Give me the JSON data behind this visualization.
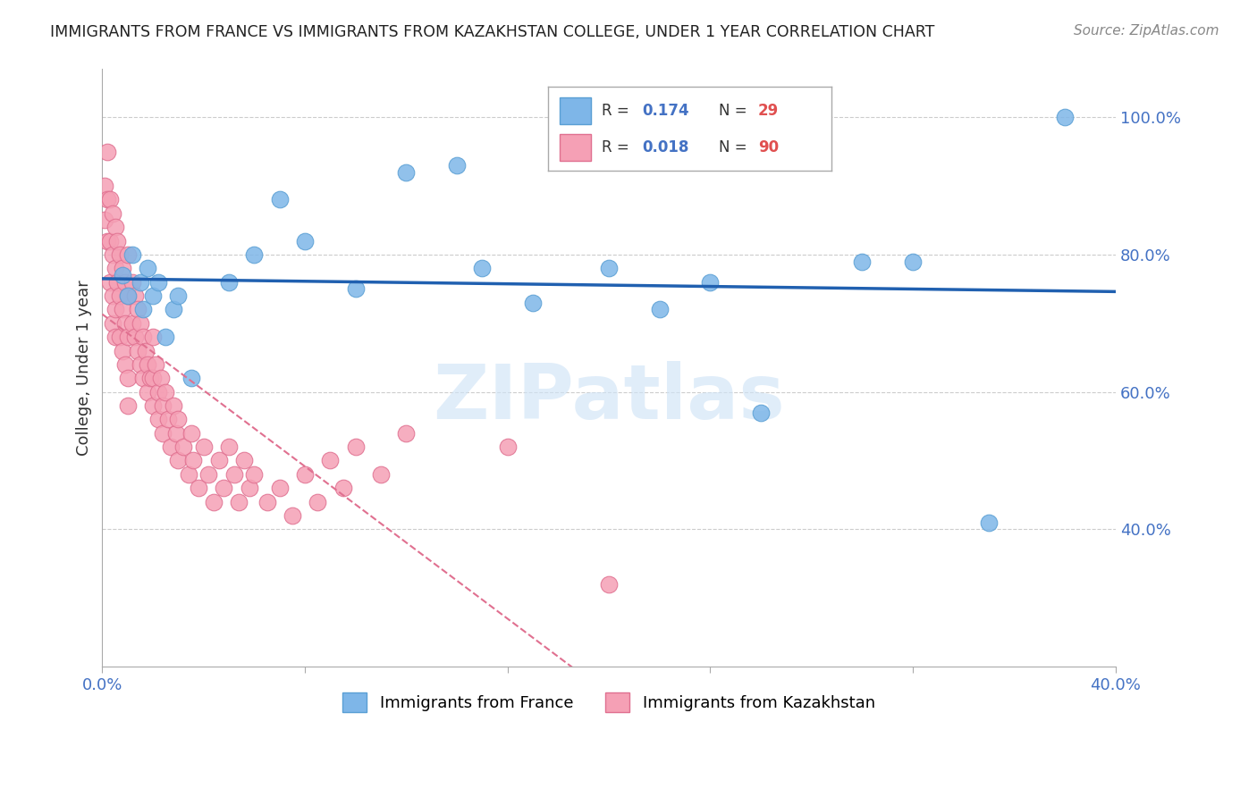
{
  "title": "IMMIGRANTS FROM FRANCE VS IMMIGRANTS FROM KAZAKHSTAN COLLEGE, UNDER 1 YEAR CORRELATION CHART",
  "source": "Source: ZipAtlas.com",
  "ylabel": "College, Under 1 year",
  "ylabel_right_ticks": [
    "40.0%",
    "60.0%",
    "80.0%",
    "100.0%"
  ],
  "ylabel_right_vals": [
    0.4,
    0.6,
    0.8,
    1.0
  ],
  "xlim": [
    0.0,
    0.4
  ],
  "ylim": [
    0.2,
    1.07
  ],
  "france_color": "#7EB6E8",
  "france_edge": "#5A9FD4",
  "kazakhstan_color": "#F5A0B5",
  "kazakhstan_edge": "#E07090",
  "france_line_color": "#2060B0",
  "kazakhstan_line_color": "#E07090",
  "watermark": "ZIPatlas",
  "france_scatter_x": [
    0.008,
    0.01,
    0.012,
    0.015,
    0.016,
    0.018,
    0.02,
    0.022,
    0.025,
    0.028,
    0.03,
    0.035,
    0.05,
    0.06,
    0.07,
    0.08,
    0.1,
    0.12,
    0.14,
    0.15,
    0.17,
    0.2,
    0.22,
    0.24,
    0.26,
    0.3,
    0.32,
    0.35,
    0.38
  ],
  "france_scatter_y": [
    0.77,
    0.74,
    0.8,
    0.76,
    0.72,
    0.78,
    0.74,
    0.76,
    0.68,
    0.72,
    0.74,
    0.62,
    0.76,
    0.8,
    0.88,
    0.82,
    0.75,
    0.92,
    0.93,
    0.78,
    0.73,
    0.78,
    0.72,
    0.76,
    0.57,
    0.79,
    0.79,
    0.41,
    1.0
  ],
  "kazakhstan_scatter_x": [
    0.001,
    0.001,
    0.002,
    0.002,
    0.002,
    0.003,
    0.003,
    0.003,
    0.004,
    0.004,
    0.004,
    0.004,
    0.005,
    0.005,
    0.005,
    0.005,
    0.006,
    0.006,
    0.007,
    0.007,
    0.007,
    0.008,
    0.008,
    0.008,
    0.009,
    0.009,
    0.009,
    0.01,
    0.01,
    0.01,
    0.01,
    0.01,
    0.012,
    0.012,
    0.013,
    0.013,
    0.014,
    0.014,
    0.015,
    0.015,
    0.016,
    0.016,
    0.017,
    0.018,
    0.018,
    0.019,
    0.02,
    0.02,
    0.02,
    0.021,
    0.022,
    0.022,
    0.023,
    0.024,
    0.024,
    0.025,
    0.026,
    0.027,
    0.028,
    0.029,
    0.03,
    0.03,
    0.032,
    0.034,
    0.035,
    0.036,
    0.038,
    0.04,
    0.042,
    0.044,
    0.046,
    0.048,
    0.05,
    0.052,
    0.054,
    0.056,
    0.058,
    0.06,
    0.065,
    0.07,
    0.075,
    0.08,
    0.085,
    0.09,
    0.095,
    0.1,
    0.11,
    0.12,
    0.16,
    0.2
  ],
  "kazakhstan_scatter_y": [
    0.9,
    0.85,
    0.95,
    0.88,
    0.82,
    0.76,
    0.88,
    0.82,
    0.86,
    0.8,
    0.74,
    0.7,
    0.84,
    0.78,
    0.72,
    0.68,
    0.82,
    0.76,
    0.8,
    0.74,
    0.68,
    0.78,
    0.72,
    0.66,
    0.76,
    0.7,
    0.64,
    0.8,
    0.74,
    0.68,
    0.62,
    0.58,
    0.76,
    0.7,
    0.74,
    0.68,
    0.72,
    0.66,
    0.7,
    0.64,
    0.68,
    0.62,
    0.66,
    0.64,
    0.6,
    0.62,
    0.68,
    0.62,
    0.58,
    0.64,
    0.6,
    0.56,
    0.62,
    0.58,
    0.54,
    0.6,
    0.56,
    0.52,
    0.58,
    0.54,
    0.5,
    0.56,
    0.52,
    0.48,
    0.54,
    0.5,
    0.46,
    0.52,
    0.48,
    0.44,
    0.5,
    0.46,
    0.52,
    0.48,
    0.44,
    0.5,
    0.46,
    0.48,
    0.44,
    0.46,
    0.42,
    0.48,
    0.44,
    0.5,
    0.46,
    0.52,
    0.48,
    0.54,
    0.52,
    0.32
  ]
}
